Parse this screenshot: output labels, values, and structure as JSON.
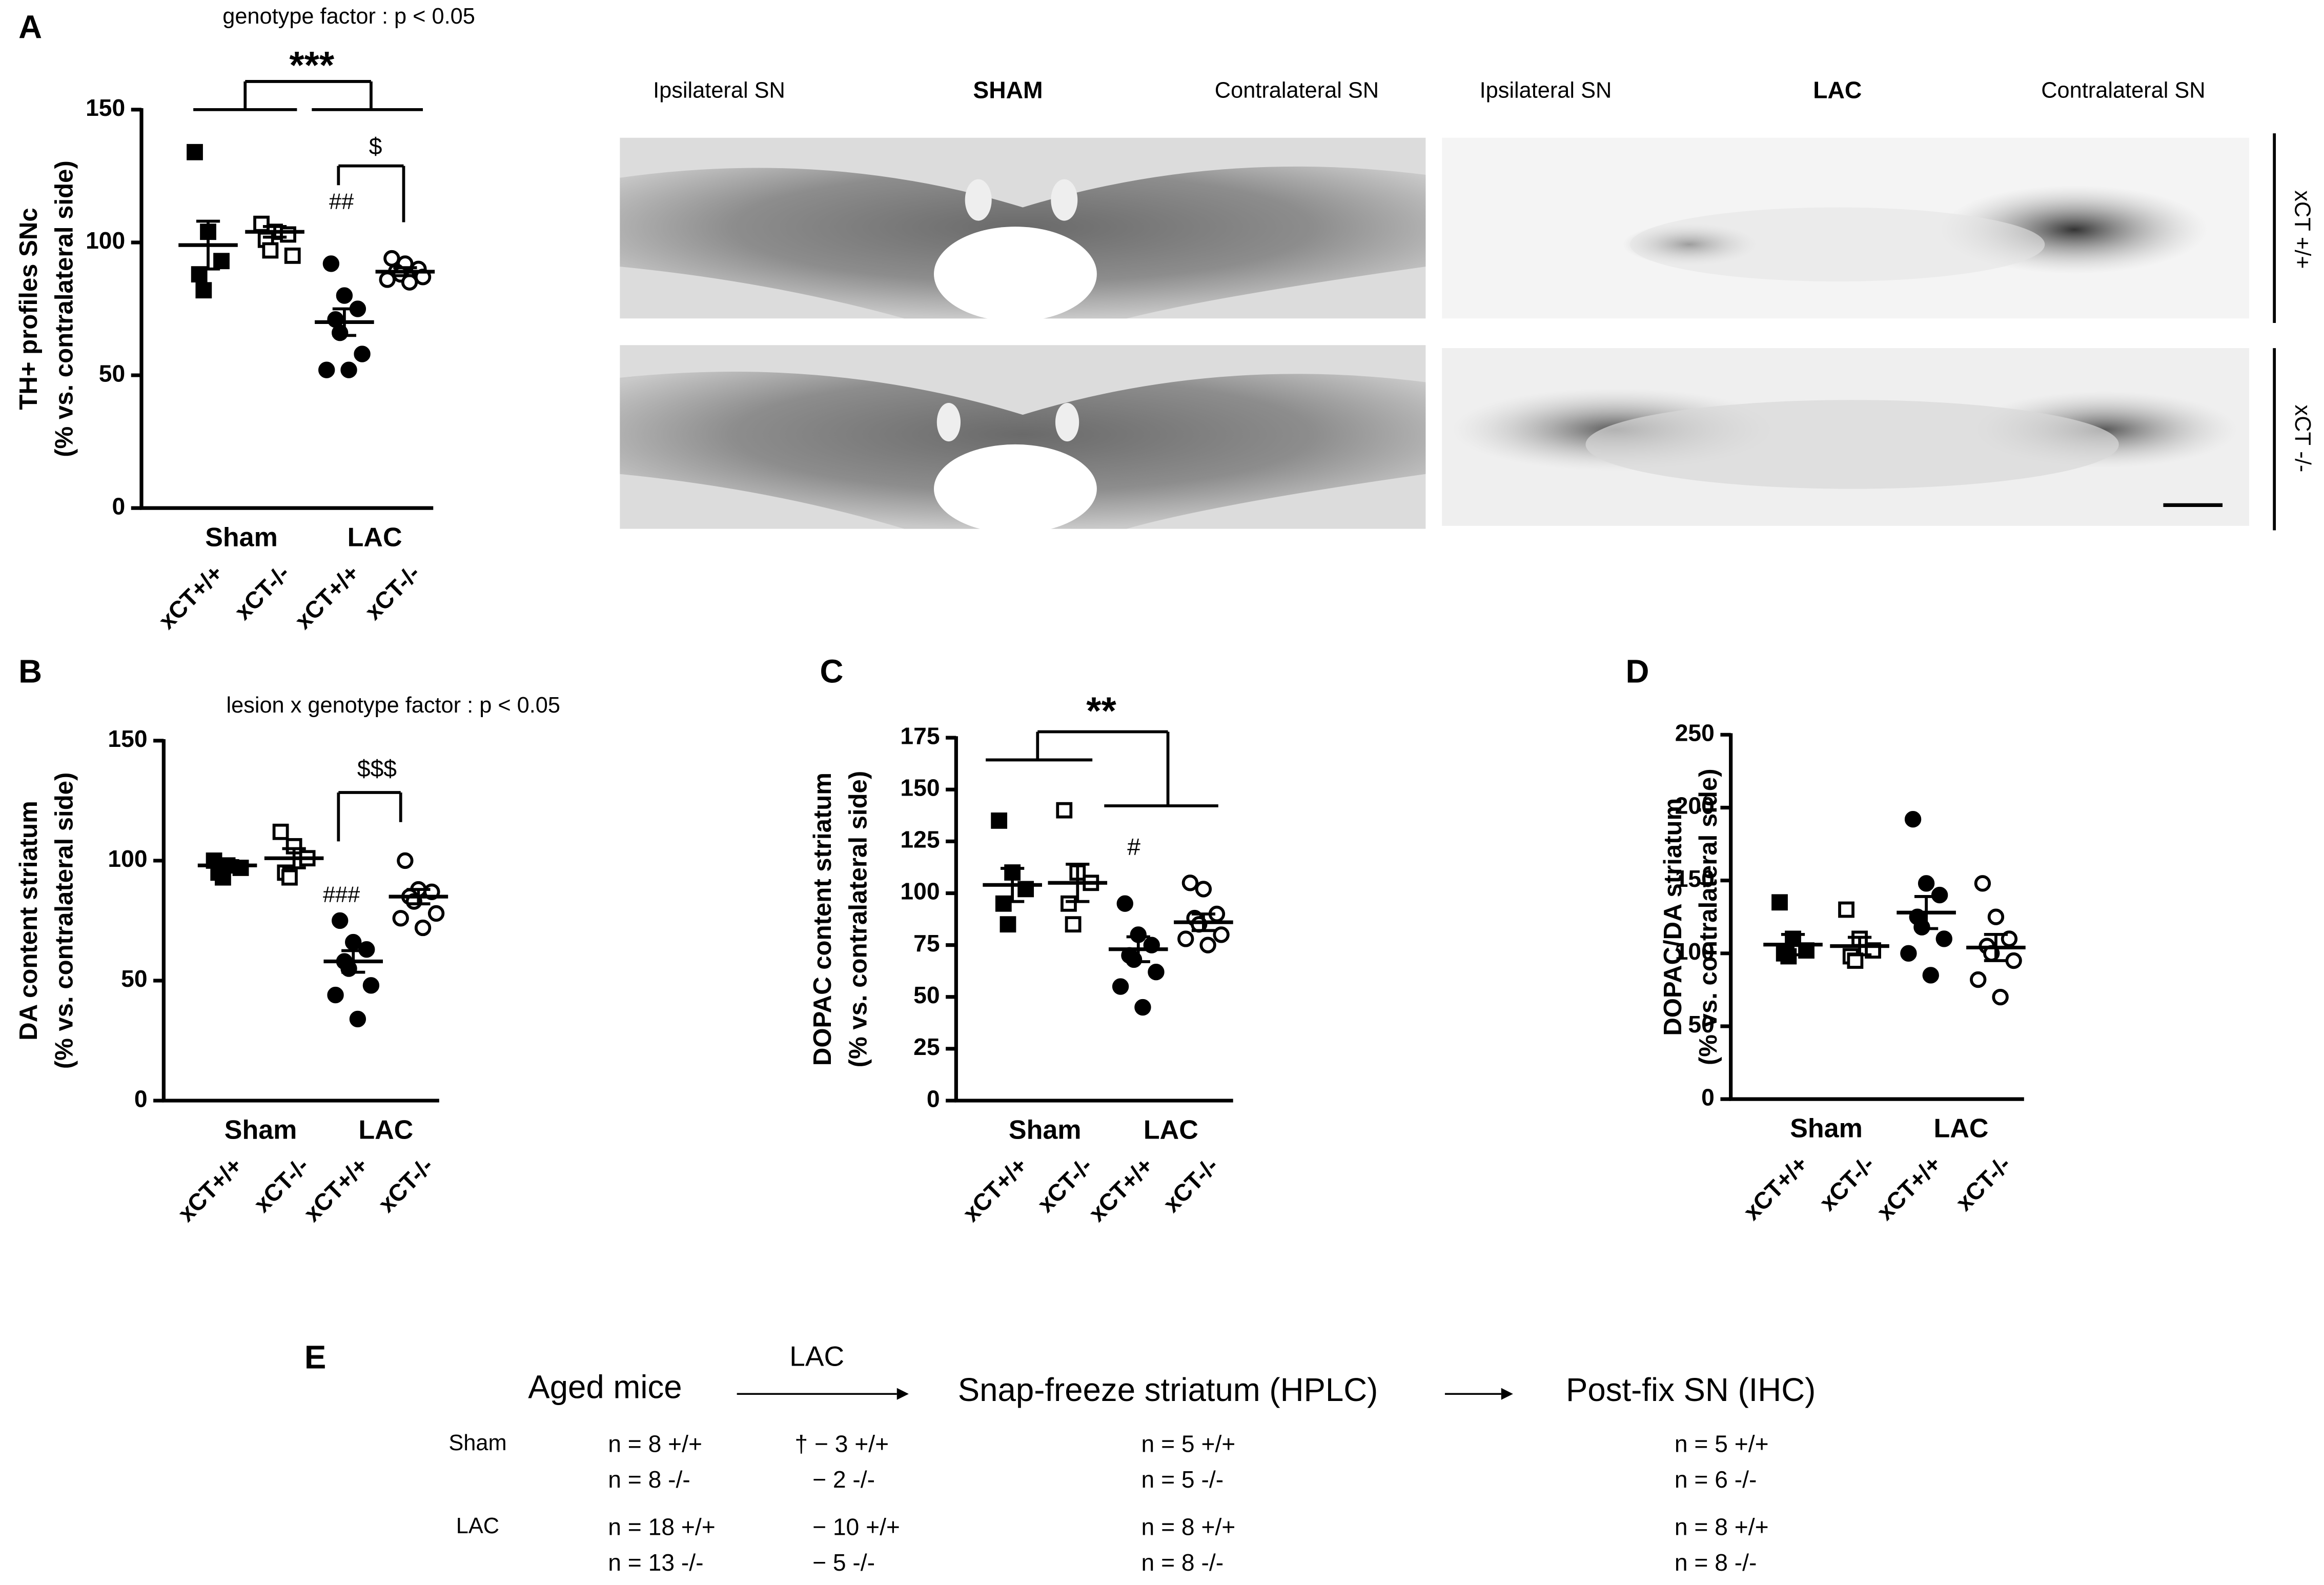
{
  "chart_data": [
    {
      "type": "dot",
      "label": "A",
      "subtitle": "genotype factor : p < 0.05",
      "ylabel": [
        "TH+ profiles SNc",
        "(% vs. contralateral side)"
      ],
      "categories": [
        "xCT+/+",
        "xCT-/-",
        "xCT+/+",
        "xCT-/-"
      ],
      "groups": [
        "Sham",
        "LAC"
      ],
      "markers": [
        "square-filled",
        "square-open",
        "circle-filled",
        "circle-open"
      ],
      "points": [
        [
          134,
          104,
          93,
          88,
          82
        ],
        [
          107,
          104,
          103,
          101,
          97,
          95
        ],
        [
          92,
          80,
          75,
          71,
          66,
          58,
          52,
          52
        ],
        [
          94,
          92,
          90,
          89,
          88,
          87,
          86,
          85
        ]
      ],
      "means": [
        99,
        104,
        70,
        89
      ],
      "sems": [
        9,
        2,
        5,
        1.5
      ],
      "annotations": [
        "***",
        "##",
        "$"
      ],
      "ylim": [
        0,
        150
      ],
      "yticks": [
        0,
        50,
        100,
        150
      ]
    },
    {
      "type": "dot",
      "label": "B",
      "subtitle": "lesion x genotype factor : p < 0.05",
      "ylabel": [
        "DA content striatum",
        "(% vs. contralateral side)"
      ],
      "categories": [
        "xCT+/+",
        "xCT-/-",
        "xCT+/+",
        "xCT-/-"
      ],
      "groups": [
        "Sham",
        "LAC"
      ],
      "markers": [
        "square-filled",
        "square-open",
        "circle-filled",
        "circle-open"
      ],
      "points": [
        [
          100,
          98,
          97,
          95,
          93
        ],
        [
          112,
          106,
          101,
          95,
          93
        ],
        [
          75,
          66,
          63,
          58,
          55,
          48,
          44,
          34
        ],
        [
          100,
          88,
          87,
          85,
          83,
          78,
          76,
          72
        ]
      ],
      "means": [
        98,
        101,
        58,
        85
      ],
      "sems": [
        2,
        4,
        4.5,
        3
      ],
      "annotations": [
        "###",
        "$$$"
      ],
      "ylim": [
        0,
        150
      ],
      "yticks": [
        0,
        50,
        100,
        150
      ]
    },
    {
      "type": "dot",
      "label": "C",
      "ylabel": [
        "DOPAC content striatum",
        "(% vs. contralateral side)"
      ],
      "categories": [
        "xCT+/+",
        "xCT-/-",
        "xCT+/+",
        "xCT-/-"
      ],
      "groups": [
        "Sham",
        "LAC"
      ],
      "markers": [
        "square-filled",
        "square-open",
        "circle-filled",
        "circle-open"
      ],
      "points": [
        [
          135,
          110,
          102,
          95,
          85
        ],
        [
          140,
          110,
          105,
          95,
          85
        ],
        [
          95,
          80,
          75,
          70,
          68,
          62,
          55,
          45
        ],
        [
          105,
          102,
          90,
          88,
          85,
          80,
          78,
          75
        ]
      ],
      "means": [
        104,
        105,
        73,
        86
      ],
      "sems": [
        8,
        9,
        6,
        4
      ],
      "annotations": [
        "**",
        "#"
      ],
      "ylim": [
        0,
        175
      ],
      "yticks": [
        0,
        25,
        50,
        75,
        100,
        125,
        150,
        175
      ]
    },
    {
      "type": "dot",
      "label": "D",
      "ylabel": [
        "DOPAC/DA striatum",
        "(% vs. contralateral side)"
      ],
      "categories": [
        "xCT+/+",
        "xCT-/-",
        "xCT+/+",
        "xCT-/-"
      ],
      "groups": [
        "Sham",
        "LAC"
      ],
      "markers": [
        "square-filled",
        "square-open",
        "circle-filled",
        "circle-open"
      ],
      "points": [
        [
          135,
          110,
          102,
          100,
          98
        ],
        [
          130,
          110,
          102,
          98,
          95
        ],
        [
          192,
          148,
          140,
          125,
          118,
          110,
          100,
          85
        ],
        [
          148,
          125,
          110,
          105,
          100,
          95,
          82,
          70
        ]
      ],
      "means": [
        106,
        105,
        128,
        104
      ],
      "sems": [
        7,
        6,
        11,
        9
      ],
      "annotations": [],
      "ylim": [
        0,
        250
      ],
      "yticks": [
        0,
        50,
        100,
        150,
        200,
        250
      ]
    }
  ],
  "micrographs": {
    "columns": [
      {
        "left": "Ipsilateral SN",
        "title": "SHAM",
        "right": "Contralateral SN"
      },
      {
        "left": "Ipsilateral SN",
        "title": "LAC",
        "right": "Contralateral SN"
      }
    ],
    "rows": [
      "xCT +/+",
      "xCT -/-"
    ]
  },
  "flowchart": {
    "label": "E",
    "steps": [
      "Aged mice",
      "Snap-freeze striatum (HPLC)",
      "Post-fix SN (IHC)"
    ],
    "arrow_label": "LAC",
    "rows": [
      {
        "group": "Sham",
        "cells": [
          [
            "n = 8 +/+",
            "n = 8 -/-"
          ],
          [
            "† − 3 +/+",
            "− 2 -/-"
          ],
          [
            "n = 5 +/+",
            "n = 5 -/-"
          ],
          [
            "n = 5 +/+",
            "n = 6 -/-"
          ]
        ]
      },
      {
        "group": "LAC",
        "cells": [
          [
            "n = 18 +/+",
            "n = 13 -/-"
          ],
          [
            "− 10 +/+",
            "− 5 -/-"
          ],
          [
            "n = 8 +/+",
            "n = 8 -/-"
          ],
          [
            "n = 8 +/+",
            "n = 8 -/-"
          ]
        ]
      }
    ]
  }
}
